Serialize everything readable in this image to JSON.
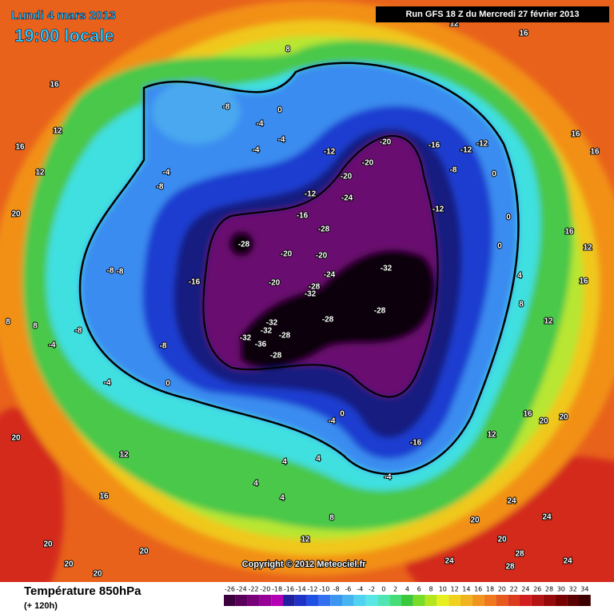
{
  "header": {
    "date": "Lundi 4 mars 2013",
    "time": "19:00 locale",
    "run": "Run GFS 18 Z du Mercredi 27 février 2013"
  },
  "footer": {
    "title": "Température 850hPa",
    "subtitle": "(+ 120h)",
    "copyright": "Copyright © 2012 Meteociel.fr"
  },
  "legend": {
    "ticks": [
      -26,
      -24,
      -22,
      -20,
      -18,
      -16,
      -14,
      -12,
      -10,
      -8,
      -6,
      -4,
      -2,
      0,
      2,
      4,
      6,
      8,
      10,
      12,
      14,
      16,
      18,
      20,
      22,
      24,
      26,
      28,
      30,
      32,
      34
    ],
    "colors": [
      "#3c003c",
      "#5a005a",
      "#780078",
      "#960096",
      "#b400b4",
      "#2020a0",
      "#1e32c8",
      "#1e50e6",
      "#3270f0",
      "#3c96f0",
      "#46b4f0",
      "#50d2f0",
      "#5ae6e6",
      "#50e6b4",
      "#46dc78",
      "#3cc83c",
      "#78dc28",
      "#b4e61e",
      "#e6f01e",
      "#f0d21e",
      "#f0b41e",
      "#f0961e",
      "#f0781e",
      "#e65a1e",
      "#dc3c1e",
      "#d21e1e",
      "#b41414",
      "#960a0a",
      "#780000",
      "#5a0000",
      "#3c0000"
    ]
  },
  "contour_labels": [
    "16",
    "12",
    "8",
    "16",
    "12",
    "16",
    "12",
    "20",
    "-8",
    "0",
    "-4",
    "-4",
    "-4",
    "-4",
    "-8",
    "-12",
    "-20",
    "-20",
    "-16",
    "-12",
    "-12",
    "-8",
    "-20",
    "-24",
    "-12",
    "-16",
    "-12",
    "-28",
    "-28",
    "-20",
    "-20",
    "-32",
    "-24",
    "-28",
    "-32",
    "-20",
    "-16",
    "-28",
    "-28",
    "-32",
    "-32",
    "-28",
    "-32",
    "-36",
    "-28",
    "-8",
    "-8",
    "-4",
    "-8",
    "-4",
    "0",
    "-16",
    "-4",
    "0",
    "-4",
    "12",
    "16",
    "20",
    "4",
    "4",
    "4",
    "4",
    "8",
    "12",
    "24",
    "24",
    "20",
    "20",
    "28",
    "28",
    "24",
    "24",
    "16",
    "20",
    "20",
    "12",
    "8",
    "12",
    "16",
    "12",
    "4",
    "16",
    "16",
    "16",
    "0",
    "0",
    "0",
    "20",
    "20",
    "20",
    "20",
    "8",
    "8",
    "-8"
  ]
}
